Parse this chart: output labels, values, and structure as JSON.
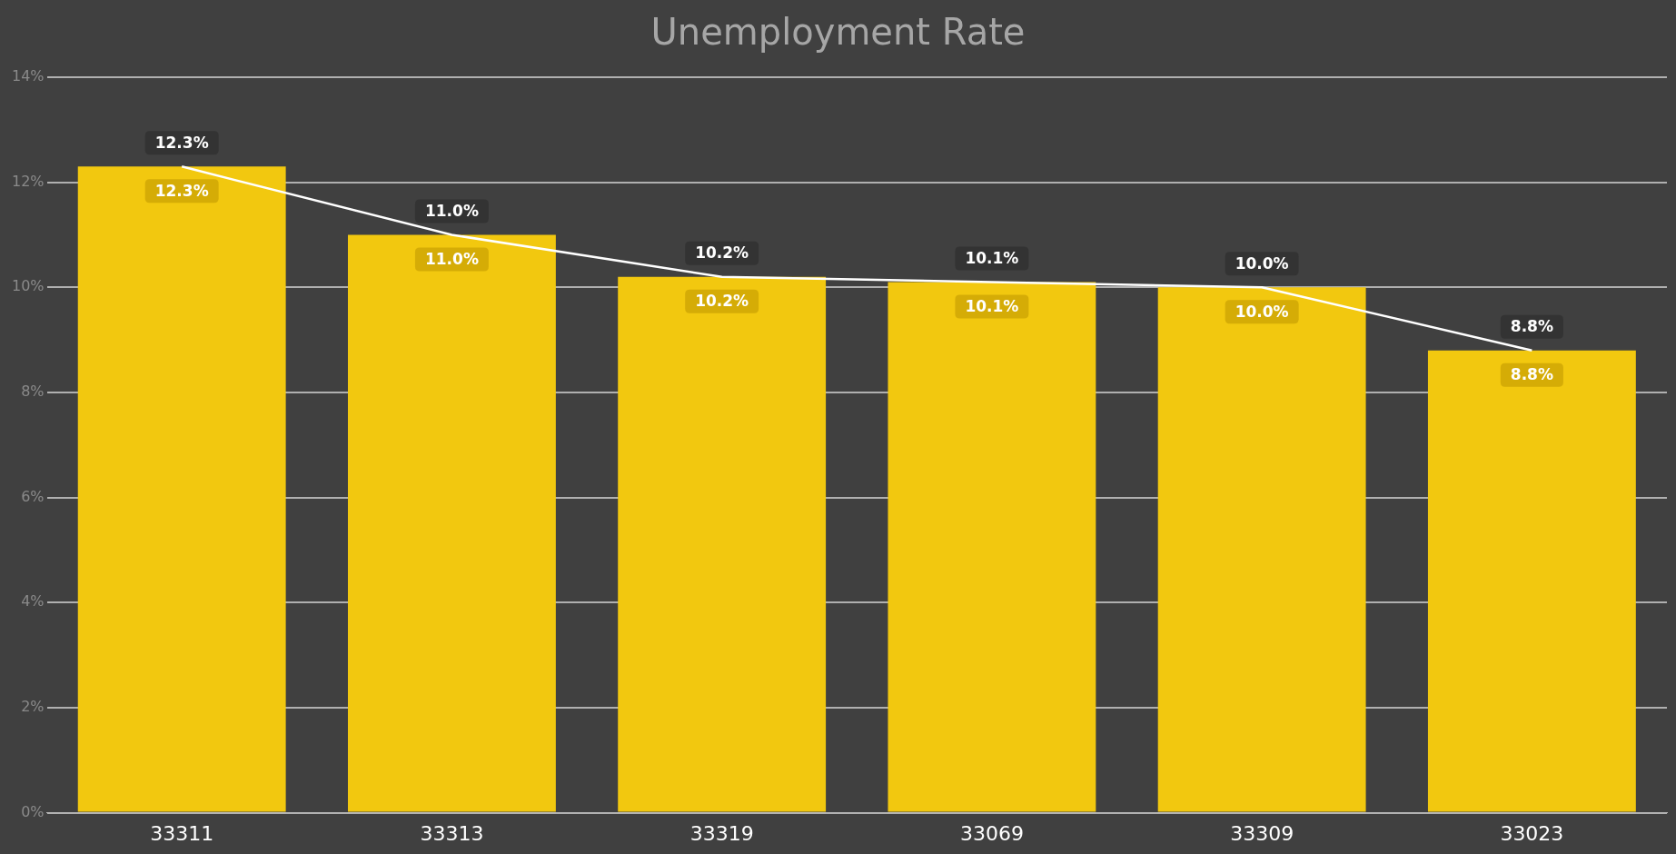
{
  "chart_data": {
    "type": "bar",
    "title": "Unemployment Rate",
    "categories": [
      "33311",
      "33313",
      "33319",
      "33069",
      "33309",
      "33023"
    ],
    "series": [
      {
        "color": "#f2c80f",
        "values": [
          12.3,
          11.0,
          10.2,
          10.1,
          10.0,
          8.8
        ],
        "value_labels": [
          "12.3%",
          "11.0%",
          "10.2%",
          "10.1%",
          "10.0%",
          "8.8%"
        ]
      },
      {
        "type": "line",
        "color": "#ffffff",
        "values": [
          12.3,
          11.0,
          10.2,
          10.1,
          10.0,
          8.8
        ],
        "value_labels": [
          "12.3%",
          "11.0%",
          "10.2%",
          "10.1%",
          "10.0%",
          "8.8%"
        ]
      }
    ],
    "ylim": [
      0,
      14
    ],
    "yticks": [
      {
        "value": 0,
        "label": "0%"
      },
      {
        "value": 2,
        "label": "2%"
      },
      {
        "value": 4,
        "label": "4%"
      },
      {
        "value": 6,
        "label": "6%"
      },
      {
        "value": 8,
        "label": "8%"
      },
      {
        "value": 10,
        "label": "10%"
      },
      {
        "value": 12,
        "label": "12%"
      },
      {
        "value": 14,
        "label": "14%"
      }
    ],
    "grid": "y",
    "legend": false
  }
}
